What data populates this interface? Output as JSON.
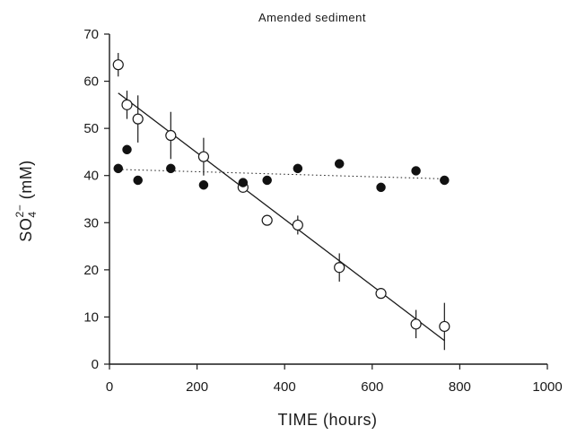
{
  "chart_data": {
    "type": "scatter",
    "title": "Amended sediment",
    "xlabel": "TIME (hours)",
    "ylabel": {
      "base": "SO",
      "sub": "4",
      "sup": "2−",
      "unit": " (mM)"
    },
    "xlim": [
      0,
      1000
    ],
    "ylim": [
      0,
      70
    ],
    "xticks": [
      0,
      200,
      400,
      600,
      800,
      1000
    ],
    "yticks": [
      0,
      10,
      20,
      30,
      40,
      50,
      60,
      70
    ],
    "grid": false,
    "series": [
      {
        "marker": "open-circle",
        "points": [
          {
            "x": 20,
            "y": 63.5,
            "err": 2.5
          },
          {
            "x": 40,
            "y": 55,
            "err": 3
          },
          {
            "x": 65,
            "y": 52,
            "err": 5
          },
          {
            "x": 140,
            "y": 48.5,
            "err": 5
          },
          {
            "x": 215,
            "y": 44,
            "err": 4
          },
          {
            "x": 305,
            "y": 37.5,
            "err": 1
          },
          {
            "x": 360,
            "y": 30.5,
            "err": 0
          },
          {
            "x": 430,
            "y": 29.5,
            "err": 2
          },
          {
            "x": 525,
            "y": 20.5,
            "err": 3
          },
          {
            "x": 620,
            "y": 15,
            "err": 1
          },
          {
            "x": 700,
            "y": 8.5,
            "err": 3
          },
          {
            "x": 765,
            "y": 8,
            "err": 5
          }
        ],
        "fit": {
          "style": "solid",
          "x": [
            20,
            765
          ],
          "y": [
            57.5,
            5
          ]
        }
      },
      {
        "marker": "filled-circle",
        "points": [
          {
            "x": 20,
            "y": 41.5
          },
          {
            "x": 40,
            "y": 45.5
          },
          {
            "x": 65,
            "y": 39
          },
          {
            "x": 140,
            "y": 41.5
          },
          {
            "x": 215,
            "y": 38
          },
          {
            "x": 305,
            "y": 38.5
          },
          {
            "x": 360,
            "y": 39
          },
          {
            "x": 430,
            "y": 41.5
          },
          {
            "x": 525,
            "y": 42.5
          },
          {
            "x": 620,
            "y": 37.5
          },
          {
            "x": 700,
            "y": 41
          },
          {
            "x": 765,
            "y": 39
          }
        ],
        "fit": {
          "style": "dotted",
          "x": [
            20,
            765
          ],
          "y": [
            41.3,
            39.3
          ]
        }
      }
    ]
  }
}
